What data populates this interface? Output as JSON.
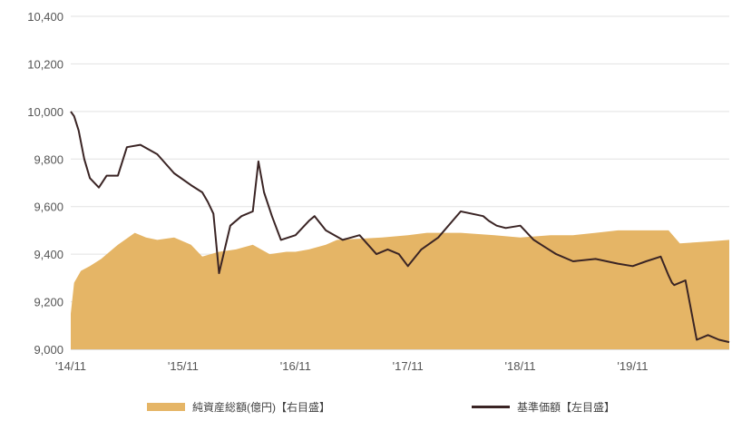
{
  "chart_data": {
    "type": "area+line",
    "colors": {
      "area": "#E5B566",
      "line": "#3A2424",
      "grid": "#E2E2E2"
    },
    "left_axis": {
      "range": [
        9000,
        10400
      ],
      "ticks": [
        9000,
        9200,
        9400,
        9600,
        9800,
        10000,
        10200,
        10400
      ],
      "tick_labels": [
        "9,000",
        "9,200",
        "9,400",
        "9,600",
        "9,800",
        "10,000",
        "10,200",
        "10,400"
      ]
    },
    "x_axis": {
      "range": [
        2014.83,
        2020.69
      ],
      "ticks": [
        2014.83,
        2015.83,
        2016.83,
        2017.83,
        2018.83,
        2019.83
      ],
      "tick_labels": [
        "'14/11",
        "'15/11",
        "'16/11",
        "'17/11",
        "'18/11",
        "'19/11"
      ]
    },
    "legend": [
      {
        "name": "純資産総額(億円)【右目盛】",
        "type": "area"
      },
      {
        "name": "基準価額【左目盛】",
        "type": "line"
      }
    ],
    "series": [
      {
        "name": "純資産総額(億円)【右目盛】",
        "type": "area",
        "note": "values expressed on the left-axis scale (right axis not printed)",
        "x": [
          2014.83,
          2014.86,
          2014.92,
          2015.0,
          2015.1,
          2015.25,
          2015.4,
          2015.5,
          2015.6,
          2015.75,
          2015.9,
          2016.0,
          2016.15,
          2016.3,
          2016.45,
          2016.6,
          2016.75,
          2016.83,
          2016.95,
          2017.1,
          2017.2,
          2017.4,
          2017.6,
          2017.83,
          2018.0,
          2018.3,
          2018.6,
          2018.83,
          2019.1,
          2019.3,
          2019.5,
          2019.7,
          2019.83,
          2020.0,
          2020.15,
          2020.25,
          2020.4,
          2020.55,
          2020.69
        ],
        "y": [
          9150,
          9280,
          9330,
          9350,
          9380,
          9440,
          9490,
          9470,
          9460,
          9470,
          9440,
          9390,
          9410,
          9420,
          9440,
          9400,
          9410,
          9410,
          9420,
          9440,
          9460,
          9465,
          9470,
          9480,
          9490,
          9490,
          9480,
          9470,
          9480,
          9480,
          9490,
          9500,
          9500,
          9500,
          9500,
          9445,
          9450,
          9455,
          9460
        ]
      },
      {
        "name": "基準価額【左目盛】",
        "type": "line",
        "x": [
          2014.83,
          2014.86,
          2014.9,
          2014.95,
          2015.0,
          2015.08,
          2015.15,
          2015.25,
          2015.33,
          2015.45,
          2015.6,
          2015.75,
          2015.9,
          2016.0,
          2016.05,
          2016.1,
          2016.15,
          2016.25,
          2016.35,
          2016.45,
          2016.5,
          2016.55,
          2016.62,
          2016.7,
          2016.83,
          2016.95,
          2017.0,
          2017.1,
          2017.25,
          2017.4,
          2017.55,
          2017.65,
          2017.75,
          2017.83,
          2017.95,
          2018.1,
          2018.3,
          2018.5,
          2018.55,
          2018.62,
          2018.7,
          2018.83,
          2018.95,
          2019.05,
          2019.15,
          2019.3,
          2019.5,
          2019.7,
          2019.83,
          2019.95,
          2020.08,
          2020.15,
          2020.18,
          2020.2,
          2020.3,
          2020.4,
          2020.5,
          2020.6,
          2020.69
        ],
        "y": [
          10000,
          9980,
          9920,
          9800,
          9720,
          9680,
          9730,
          9730,
          9850,
          9860,
          9820,
          9740,
          9690,
          9660,
          9620,
          9570,
          9320,
          9520,
          9560,
          9580,
          9790,
          9660,
          9560,
          9460,
          9480,
          9540,
          9560,
          9500,
          9460,
          9480,
          9400,
          9420,
          9400,
          9350,
          9420,
          9470,
          9580,
          9560,
          9540,
          9520,
          9510,
          9520,
          9460,
          9430,
          9400,
          9370,
          9380,
          9360,
          9350,
          9370,
          9390,
          9310,
          9280,
          9270,
          9290,
          9040,
          9060,
          9040,
          9030
        ]
      }
    ]
  }
}
